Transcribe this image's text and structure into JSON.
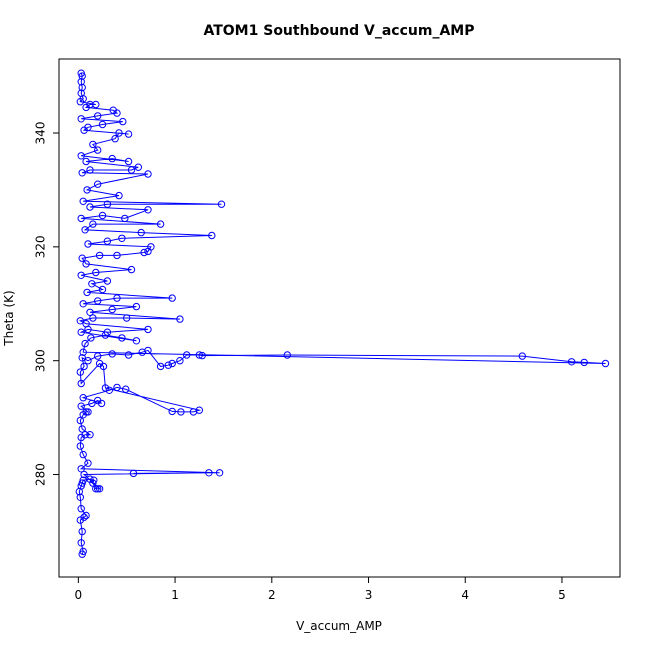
{
  "chart_data": {
    "type": "line",
    "title": "ATOM1 Southbound V_accum_AMP",
    "xlabel": "V_accum_AMP",
    "ylabel": "Theta (K)",
    "xlim": [
      -0.2,
      5.6
    ],
    "ylim": [
      262,
      353
    ],
    "xticks": [
      0,
      1,
      2,
      3,
      4,
      5
    ],
    "yticks": [
      280,
      300,
      320,
      340
    ],
    "grid": false,
    "series": [
      {
        "color": "#0000ff",
        "marker": "open-circle",
        "points": [
          [
            0.04,
            266.0
          ],
          [
            0.05,
            266.5
          ],
          [
            0.03,
            268.0
          ],
          [
            0.04,
            270.0
          ],
          [
            0.02,
            272.0
          ],
          [
            0.06,
            272.5
          ],
          [
            0.08,
            272.8
          ],
          [
            0.03,
            274.0
          ],
          [
            0.02,
            276.0
          ],
          [
            0.01,
            277.0
          ],
          [
            0.03,
            278.0
          ],
          [
            0.04,
            278.5
          ],
          [
            0.05,
            279.0
          ],
          [
            0.12,
            279.2
          ],
          [
            0.16,
            279.0
          ],
          [
            0.15,
            278.5
          ],
          [
            0.18,
            277.5
          ],
          [
            0.2,
            277.5
          ],
          [
            0.22,
            277.5
          ],
          [
            0.06,
            280.0
          ],
          [
            1.35,
            280.3
          ],
          [
            0.57,
            280.2
          ],
          [
            1.46,
            280.3
          ],
          [
            0.03,
            281.0
          ],
          [
            0.1,
            282.0
          ],
          [
            0.05,
            283.5
          ],
          [
            0.02,
            285.0
          ],
          [
            0.03,
            286.5
          ],
          [
            0.07,
            287.0
          ],
          [
            0.12,
            287.0
          ],
          [
            0.04,
            288.0
          ],
          [
            0.02,
            289.5
          ],
          [
            0.05,
            290.5
          ],
          [
            0.08,
            291.0
          ],
          [
            0.1,
            291.0
          ],
          [
            0.03,
            292.0
          ],
          [
            0.14,
            292.5
          ],
          [
            0.2,
            293.0
          ],
          [
            0.24,
            292.5
          ],
          [
            0.05,
            293.5
          ],
          [
            0.32,
            294.8
          ],
          [
            0.4,
            295.3
          ],
          [
            0.49,
            295.0
          ],
          [
            0.97,
            291.1
          ],
          [
            1.06,
            291.0
          ],
          [
            1.19,
            291.0
          ],
          [
            1.25,
            291.3
          ],
          [
            0.28,
            295.2
          ],
          [
            0.26,
            299.0
          ],
          [
            0.22,
            299.5
          ],
          [
            0.03,
            296.0
          ],
          [
            0.02,
            298.0
          ],
          [
            0.06,
            299.0
          ],
          [
            0.04,
            300.5
          ],
          [
            0.1,
            300.0
          ],
          [
            0.2,
            300.8
          ],
          [
            0.35,
            301.2
          ],
          [
            0.52,
            301.0
          ],
          [
            0.66,
            301.5
          ],
          [
            0.72,
            301.8
          ],
          [
            0.85,
            299.0
          ],
          [
            0.93,
            299.2
          ],
          [
            0.97,
            299.5
          ],
          [
            1.05,
            300.0
          ],
          [
            1.12,
            301.0
          ],
          [
            1.25,
            301.0
          ],
          [
            1.28,
            300.9
          ],
          [
            2.16,
            301.0
          ],
          [
            4.59,
            300.8
          ],
          [
            5.1,
            299.8
          ],
          [
            5.23,
            299.7
          ],
          [
            5.45,
            299.5
          ],
          [
            0.05,
            301.5
          ],
          [
            0.07,
            303.0
          ],
          [
            0.13,
            304.0
          ],
          [
            0.28,
            304.5
          ],
          [
            0.45,
            304.0
          ],
          [
            0.6,
            303.5
          ],
          [
            0.03,
            305.0
          ],
          [
            0.1,
            305.5
          ],
          [
            0.3,
            305.0
          ],
          [
            0.72,
            305.5
          ],
          [
            0.08,
            306.5
          ],
          [
            0.02,
            307.0
          ],
          [
            0.15,
            307.5
          ],
          [
            0.5,
            307.5
          ],
          [
            1.05,
            307.3
          ],
          [
            0.12,
            308.5
          ],
          [
            0.35,
            309.0
          ],
          [
            0.6,
            309.5
          ],
          [
            0.05,
            310.0
          ],
          [
            0.2,
            310.5
          ],
          [
            0.4,
            311.0
          ],
          [
            0.97,
            311.0
          ],
          [
            0.09,
            312.0
          ],
          [
            0.25,
            312.5
          ],
          [
            0.14,
            313.5
          ],
          [
            0.3,
            314.0
          ],
          [
            0.03,
            315.0
          ],
          [
            0.18,
            315.5
          ],
          [
            0.55,
            316.0
          ],
          [
            0.08,
            317.0
          ],
          [
            0.04,
            318.0
          ],
          [
            0.22,
            318.5
          ],
          [
            0.4,
            318.5
          ],
          [
            0.68,
            319.0
          ],
          [
            0.72,
            319.2
          ],
          [
            0.75,
            320.0
          ],
          [
            0.1,
            320.5
          ],
          [
            0.3,
            321.0
          ],
          [
            0.45,
            321.5
          ],
          [
            1.38,
            322.0
          ],
          [
            0.65,
            322.5
          ],
          [
            0.07,
            323.0
          ],
          [
            0.15,
            324.0
          ],
          [
            0.85,
            324.0
          ],
          [
            0.03,
            325.0
          ],
          [
            0.25,
            325.5
          ],
          [
            0.48,
            325.0
          ],
          [
            0.72,
            326.5
          ],
          [
            0.12,
            327.0
          ],
          [
            0.3,
            327.5
          ],
          [
            1.48,
            327.5
          ],
          [
            0.05,
            328.0
          ],
          [
            0.42,
            329.0
          ],
          [
            0.09,
            330.0
          ],
          [
            0.2,
            331.0
          ],
          [
            0.72,
            332.8
          ],
          [
            0.04,
            333.0
          ],
          [
            0.12,
            333.5
          ],
          [
            0.55,
            333.5
          ],
          [
            0.62,
            334.0
          ],
          [
            0.08,
            335.0
          ],
          [
            0.35,
            335.5
          ],
          [
            0.52,
            335.0
          ],
          [
            0.03,
            336.0
          ],
          [
            0.2,
            337.0
          ],
          [
            0.15,
            338.0
          ],
          [
            0.38,
            339.0
          ],
          [
            0.42,
            340.0
          ],
          [
            0.52,
            339.8
          ],
          [
            0.06,
            340.5
          ],
          [
            0.1,
            341.0
          ],
          [
            0.25,
            341.5
          ],
          [
            0.46,
            342.0
          ],
          [
            0.03,
            342.5
          ],
          [
            0.2,
            343.0
          ],
          [
            0.4,
            343.5
          ],
          [
            0.36,
            344.0
          ],
          [
            0.08,
            344.5
          ],
          [
            0.12,
            345.0
          ],
          [
            0.18,
            345.0
          ],
          [
            0.02,
            345.5
          ],
          [
            0.05,
            346.0
          ],
          [
            0.03,
            347.0
          ],
          [
            0.04,
            348.0
          ],
          [
            0.03,
            349.0
          ],
          [
            0.04,
            350.0
          ],
          [
            0.03,
            350.5
          ]
        ]
      }
    ]
  }
}
